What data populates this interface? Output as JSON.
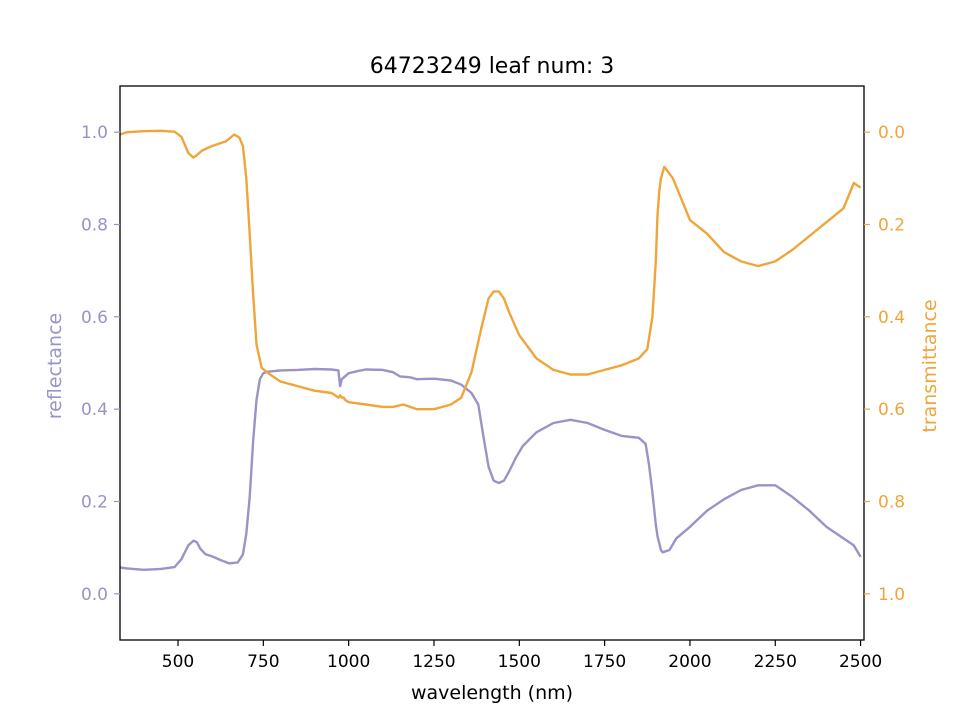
{
  "chart_data": {
    "type": "line",
    "title": "64723249 leaf num: 3",
    "xlabel": "wavelength (nm)",
    "ylabel_left": "reflectance",
    "ylabel_right": "transmittance",
    "xlim": [
      330,
      2510
    ],
    "ylim_left": [
      -0.1,
      1.1
    ],
    "ylim_right": [
      1.1,
      -0.1
    ],
    "right_axis_inverted": true,
    "grid": false,
    "legend": "none",
    "x_ticks": [
      500,
      750,
      1000,
      1250,
      1500,
      1750,
      2000,
      2250,
      2500
    ],
    "x_tick_labels": [
      "500",
      "750",
      "1000",
      "1250",
      "1500",
      "1750",
      "2000",
      "2250",
      "2500"
    ],
    "y_left_ticks": [
      0.0,
      0.2,
      0.4,
      0.6,
      0.8,
      1.0
    ],
    "y_left_tick_labels": [
      "0.0",
      "0.2",
      "0.4",
      "0.6",
      "0.8",
      "1.0"
    ],
    "y_right_ticks": [
      0.0,
      0.2,
      0.4,
      0.6,
      0.8,
      1.0
    ],
    "y_right_tick_labels": [
      "0.0",
      "0.2",
      "0.4",
      "0.6",
      "0.8",
      "1.0"
    ],
    "colors": {
      "reflectance": "#9894c8",
      "transmittance": "#f0a53c"
    },
    "series": [
      {
        "axis": "left",
        "x": [
          330,
          350,
          400,
          450,
          490,
          510,
          530,
          545,
          555,
          565,
          580,
          600,
          625,
          650,
          675,
          690,
          700,
          710,
          720,
          730,
          740,
          750,
          760,
          800,
          850,
          900,
          950,
          970,
          975,
          980,
          1000,
          1030,
          1050,
          1100,
          1130,
          1150,
          1180,
          1200,
          1250,
          1300,
          1330,
          1360,
          1380,
          1395,
          1410,
          1425,
          1440,
          1455,
          1470,
          1490,
          1510,
          1550,
          1600,
          1650,
          1700,
          1750,
          1800,
          1850,
          1870,
          1880,
          1890,
          1900,
          1905,
          1910,
          1915,
          1920,
          1940,
          1960,
          2000,
          2050,
          2100,
          2150,
          2200,
          2250,
          2300,
          2350,
          2400,
          2450,
          2480,
          2500
        ],
        "y": [
          0.057,
          0.055,
          0.052,
          0.054,
          0.058,
          0.075,
          0.105,
          0.115,
          0.112,
          0.098,
          0.086,
          0.081,
          0.073,
          0.066,
          0.068,
          0.085,
          0.13,
          0.21,
          0.33,
          0.42,
          0.465,
          0.478,
          0.481,
          0.484,
          0.485,
          0.487,
          0.486,
          0.484,
          0.45,
          0.465,
          0.478,
          0.483,
          0.486,
          0.485,
          0.48,
          0.471,
          0.469,
          0.465,
          0.466,
          0.462,
          0.453,
          0.435,
          0.41,
          0.34,
          0.275,
          0.245,
          0.24,
          0.245,
          0.265,
          0.295,
          0.32,
          0.35,
          0.37,
          0.377,
          0.37,
          0.355,
          0.342,
          0.338,
          0.325,
          0.28,
          0.22,
          0.15,
          0.125,
          0.11,
          0.095,
          0.09,
          0.095,
          0.12,
          0.145,
          0.18,
          0.205,
          0.225,
          0.235,
          0.235,
          0.21,
          0.18,
          0.145,
          0.12,
          0.105,
          0.08
        ]
      },
      {
        "axis": "right",
        "x": [
          330,
          350,
          400,
          450,
          490,
          510,
          530,
          545,
          555,
          570,
          600,
          640,
          665,
          680,
          690,
          700,
          710,
          720,
          730,
          745,
          760,
          800,
          850,
          900,
          950,
          960,
          970,
          975,
          980,
          985,
          990,
          1000,
          1050,
          1100,
          1130,
          1160,
          1200,
          1250,
          1300,
          1330,
          1360,
          1390,
          1410,
          1425,
          1440,
          1455,
          1470,
          1500,
          1550,
          1600,
          1650,
          1700,
          1750,
          1800,
          1850,
          1875,
          1890,
          1900,
          1905,
          1910,
          1915,
          1925,
          1950,
          2000,
          2050,
          2100,
          2150,
          2200,
          2250,
          2300,
          2350,
          2400,
          2450,
          2480,
          2500
        ],
        "y": [
          0.005,
          0.0,
          -0.002,
          -0.003,
          -0.001,
          0.01,
          0.045,
          0.055,
          0.05,
          0.04,
          0.03,
          0.02,
          0.005,
          0.012,
          0.03,
          0.1,
          0.22,
          0.35,
          0.46,
          0.51,
          0.52,
          0.54,
          0.55,
          0.56,
          0.565,
          0.57,
          0.575,
          0.57,
          0.575,
          0.575,
          0.58,
          0.585,
          0.59,
          0.595,
          0.595,
          0.59,
          0.6,
          0.6,
          0.59,
          0.575,
          0.52,
          0.42,
          0.36,
          0.345,
          0.345,
          0.36,
          0.39,
          0.44,
          0.49,
          0.515,
          0.525,
          0.525,
          0.515,
          0.505,
          0.49,
          0.47,
          0.4,
          0.28,
          0.18,
          0.13,
          0.1,
          0.075,
          0.1,
          0.19,
          0.22,
          0.26,
          0.28,
          0.29,
          0.28,
          0.255,
          0.225,
          0.195,
          0.165,
          0.11,
          0.12
        ]
      }
    ]
  }
}
